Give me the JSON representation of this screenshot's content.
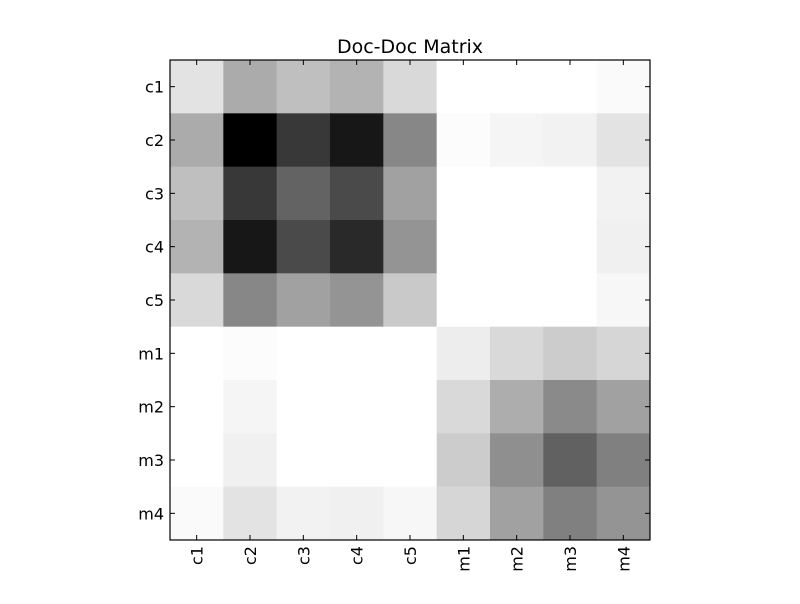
{
  "chart_data": {
    "type": "heatmap",
    "title": "Doc-Doc Matrix",
    "xlabel": "",
    "ylabel": "",
    "colormap": "gray_r",
    "colorscale": {
      "low": "#ffffff",
      "high": "#000000"
    },
    "row_labels": [
      "c1",
      "c2",
      "c3",
      "c4",
      "c5",
      "m1",
      "m2",
      "m3",
      "m4"
    ],
    "col_labels": [
      "c1",
      "c2",
      "c3",
      "c4",
      "c5",
      "m1",
      "m2",
      "m3",
      "m4"
    ],
    "values": [
      [
        0.11,
        0.33,
        0.25,
        0.3,
        0.15,
        0.0,
        0.0,
        0.0,
        0.02
      ],
      [
        0.33,
        1.0,
        0.78,
        0.91,
        0.47,
        0.01,
        0.04,
        0.05,
        0.11
      ],
      [
        0.25,
        0.78,
        0.61,
        0.71,
        0.37,
        0.0,
        0.0,
        0.0,
        0.05
      ],
      [
        0.3,
        0.91,
        0.71,
        0.84,
        0.42,
        0.0,
        0.0,
        0.0,
        0.06
      ],
      [
        0.15,
        0.47,
        0.37,
        0.42,
        0.21,
        0.0,
        0.0,
        0.0,
        0.03
      ],
      [
        0.0,
        0.01,
        0.0,
        0.0,
        0.0,
        0.07,
        0.15,
        0.2,
        0.16
      ],
      [
        0.0,
        0.04,
        0.0,
        0.0,
        0.0,
        0.15,
        0.32,
        0.46,
        0.37
      ],
      [
        0.0,
        0.06,
        0.0,
        0.0,
        0.0,
        0.2,
        0.44,
        0.62,
        0.5
      ],
      [
        0.02,
        0.11,
        0.05,
        0.06,
        0.03,
        0.16,
        0.37,
        0.5,
        0.42
      ]
    ],
    "vmin": 0,
    "vmax": 1,
    "grid": false,
    "legend": "none",
    "x_tick_rotation": "vertical"
  }
}
